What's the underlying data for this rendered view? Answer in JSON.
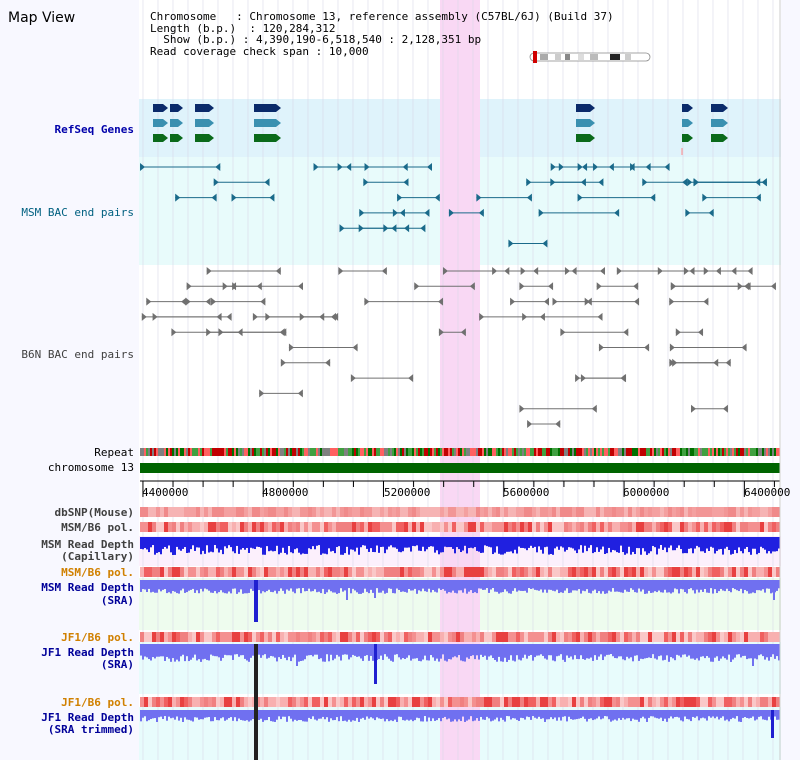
{
  "view_title": "Map View",
  "info": {
    "chromosome_label": "Chromosome",
    "chromosome_value": "Chromosome 13, reference assembly (C57BL/6J) (Build 37)",
    "length_label": "Length (b.p.)",
    "length_value": "120,284,312",
    "show_label": "Show (b.p.)",
    "show_value": "4,390,190-6,518,540 : 2,128,351 bp",
    "span_label": "Read coverage check span",
    "span_value": "10,000"
  },
  "tracks": {
    "refseq": "RefSeq Genes",
    "msm_bac": "MSM BAC end pairs",
    "b6n_bac": "B6N BAC end pairs",
    "repeat": "Repeat",
    "chromosome": "chromosome 13",
    "dbsnp": "dbSNP(Mouse)",
    "msm_b6_pol": "MSM/B6 pol.",
    "msm_depth_cap_1": "MSM Read Depth",
    "msm_depth_cap_2": "(Capillary)",
    "msm_b6_pol_2": "MSM/B6 pol.",
    "msm_depth_sra_1": "MSM Read Depth",
    "msm_depth_sra_2": "(SRA)",
    "jf1_b6_pol": "JF1/B6 pol.",
    "jf1_depth_sra_1": "JF1 Read Depth",
    "jf1_depth_sra_2": "(SRA)",
    "jf1_b6_pol_2": "JF1/B6 pol.",
    "jf1_depth_trim_1": "JF1 Read Depth",
    "jf1_depth_trim_2": "(SRA trimmed)"
  },
  "axis": {
    "ticks": [
      "4400000",
      "4800000",
      "5200000",
      "5600000",
      "6000000",
      "6400000"
    ],
    "range_start": 4390190,
    "range_end": 6518540
  },
  "colors": {
    "refseq_bg": "#dff3fb",
    "highlight": "#f9d8f4",
    "chromosome_bar": "#006400",
    "msm_depth": "#2020e0",
    "sra_depth": "#7070f0"
  }
}
